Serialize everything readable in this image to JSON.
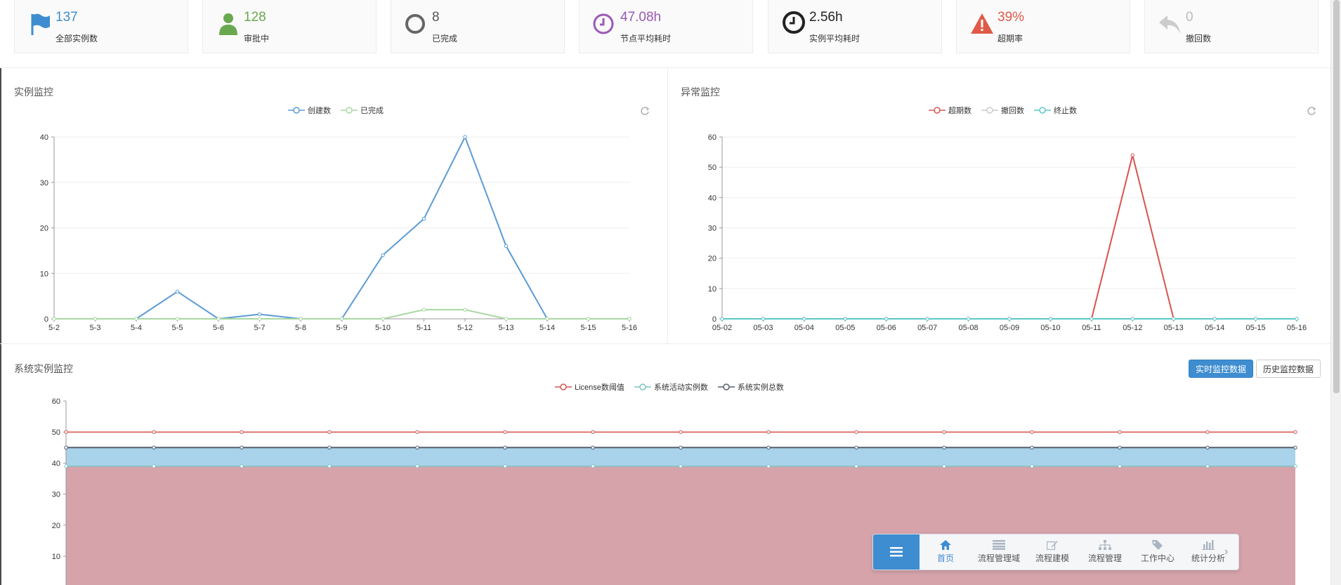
{
  "stats": [
    {
      "value": "137",
      "label": "全部实例数",
      "color": "#3e8dd0",
      "icon": "flag-icon"
    },
    {
      "value": "128",
      "label": "审批中",
      "color": "#6aa84f",
      "icon": "user-icon"
    },
    {
      "value": "8",
      "label": "已完成",
      "color": "#555555",
      "icon": "circle-icon"
    },
    {
      "value": "47.08h",
      "label": "节点平均耗时",
      "color": "#9b59b6",
      "icon": "clock-icon"
    },
    {
      "value": "2.56h",
      "label": "实例平均耗时",
      "color": "#222222",
      "icon": "clock-icon"
    },
    {
      "value": "39%",
      "label": "超期率",
      "color": "#e05a47",
      "icon": "warning-icon"
    },
    {
      "value": "0",
      "label": "撤回数",
      "color": "#bbbbbb",
      "icon": "reply-icon"
    }
  ],
  "panels": {
    "instance_title": "实例监控",
    "exception_title": "异常监控",
    "system_title": "系统实例监控"
  },
  "buttons": {
    "realtime": "实时监控数据",
    "history": "历史监控数据"
  },
  "chart_data": [
    {
      "type": "line",
      "categories": [
        "5-2",
        "5-3",
        "5-4",
        "5-5",
        "5-6",
        "5-7",
        "5-8",
        "5-9",
        "5-10",
        "5-11",
        "5-12",
        "5-13",
        "5-14",
        "5-15",
        "5-16"
      ],
      "ylim": [
        0,
        40
      ],
      "yticks": [
        0,
        10,
        20,
        30,
        40
      ],
      "series": [
        {
          "name": "创建数",
          "color": "#5b9bd5",
          "values": [
            0,
            0,
            0,
            6,
            0,
            1,
            0,
            0,
            14,
            22,
            40,
            16,
            0,
            0,
            0
          ]
        },
        {
          "name": "已完成",
          "color": "#a9d7a2",
          "values": [
            0,
            0,
            0,
            0,
            0,
            0,
            0,
            0,
            0,
            2,
            2,
            0,
            0,
            0,
            0
          ]
        }
      ]
    },
    {
      "type": "line",
      "categories": [
        "05-02",
        "05-03",
        "05-04",
        "05-05",
        "05-06",
        "05-07",
        "05-08",
        "05-09",
        "05-10",
        "05-11",
        "05-12",
        "05-13",
        "05-14",
        "05-15",
        "05-16"
      ],
      "ylim": [
        0,
        60
      ],
      "yticks": [
        0,
        10,
        20,
        30,
        40,
        50,
        60
      ],
      "series": [
        {
          "name": "超期数",
          "color": "#d9534f",
          "values": [
            0,
            0,
            0,
            0,
            0,
            0,
            0,
            0,
            0,
            0,
            54,
            0,
            0,
            0,
            0
          ]
        },
        {
          "name": "撤回数",
          "color": "#cccccc",
          "values": [
            0,
            0,
            0,
            0,
            0,
            0,
            0,
            0,
            0,
            0,
            0,
            0,
            0,
            0,
            0
          ]
        },
        {
          "name": "终止数",
          "color": "#5bc8c8",
          "values": [
            0,
            0,
            0,
            0,
            0,
            0,
            0,
            0,
            0,
            0,
            0,
            0,
            0,
            0,
            0
          ]
        }
      ]
    },
    {
      "type": "area",
      "ylim": [
        0,
        60
      ],
      "yticks": [
        0,
        10,
        20,
        30,
        40,
        50,
        60
      ],
      "points": 15,
      "series": [
        {
          "name": "License数阈值",
          "color": "#d9534f",
          "value": 50
        },
        {
          "name": "系统活动实例数",
          "color": "#7fc3c3",
          "value": 39
        },
        {
          "name": "系统实例总数",
          "color": "#555f6b",
          "value": 45
        }
      ]
    }
  ],
  "navbar": {
    "items": [
      {
        "label": "首页",
        "icon": "home-icon",
        "active": true
      },
      {
        "label": "流程管理域",
        "icon": "list-icon",
        "active": false
      },
      {
        "label": "流程建模",
        "icon": "edit-icon",
        "active": false
      },
      {
        "label": "流程管理",
        "icon": "sitemap-icon",
        "active": false
      },
      {
        "label": "工作中心",
        "icon": "tag-icon",
        "active": false
      },
      {
        "label": "统计分析",
        "icon": "bar-chart-icon",
        "active": false
      }
    ]
  }
}
